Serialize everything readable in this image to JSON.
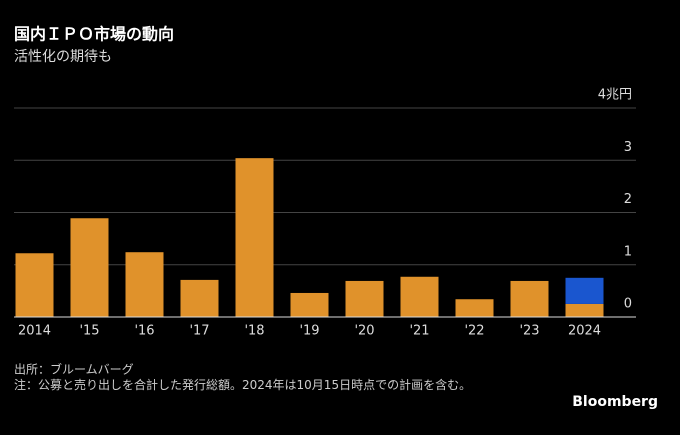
{
  "chart_data": {
    "type": "stacked-bar",
    "title": "国内ＩＰＯ市場の動向",
    "subtitle": "活性化の期待も",
    "categories": [
      "2014",
      "'15",
      "'16",
      "'17",
      "'18",
      "'19",
      "'20",
      "'21",
      "'22",
      "'23",
      "2024"
    ],
    "series": [
      {
        "color": "#e0922b",
        "values": [
          1.22,
          1.89,
          1.24,
          0.71,
          3.04,
          0.46,
          0.69,
          0.77,
          0.34,
          0.69,
          0.25
        ]
      },
      {
        "color": "#1a56cf",
        "values": [
          null,
          null,
          null,
          null,
          null,
          null,
          null,
          null,
          null,
          null,
          0.5
        ]
      }
    ],
    "ylim": [
      0,
      4
    ],
    "yticks": [
      0,
      1,
      2,
      3,
      {
        "value": 4,
        "label": "4兆円"
      }
    ],
    "grid": true,
    "source": "出所：ブルームバーグ",
    "note": "注：公募と売り出しを合計した発行総額。2024年は10月15日時点での計画を含む。",
    "brand": "Bloomberg"
  }
}
